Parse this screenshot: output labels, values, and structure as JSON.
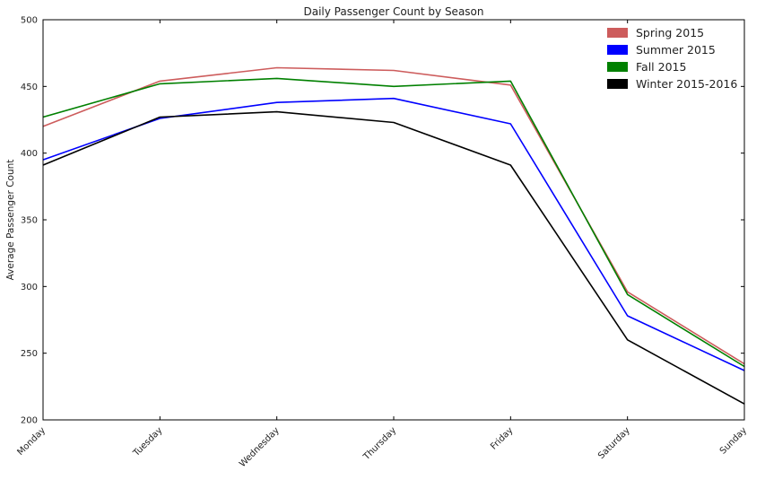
{
  "chart_data": {
    "type": "line",
    "title": "Daily Passenger Count by Season",
    "xlabel": "",
    "ylabel": "Average Passenger Count",
    "categories": [
      "Monday",
      "Tuesday",
      "Wednesday",
      "Thursday",
      "Friday",
      "Saturday",
      "Sunday"
    ],
    "ylim": [
      200,
      500
    ],
    "yticks": [
      200,
      250,
      300,
      350,
      400,
      450,
      500
    ],
    "grid": false,
    "legend_position": "top-right",
    "series": [
      {
        "name": "Spring 2015",
        "color": "#cd5c5c",
        "values": [
          420,
          454,
          464,
          462,
          451,
          296,
          242
        ]
      },
      {
        "name": "Summer 2015",
        "color": "#0000ff",
        "values": [
          395,
          426,
          438,
          441,
          422,
          278,
          237
        ]
      },
      {
        "name": "Fall 2015",
        "color": "#008000",
        "values": [
          427,
          452,
          456,
          450,
          454,
          294,
          240
        ]
      },
      {
        "name": "Winter 2015-2016",
        "color": "#000000",
        "values": [
          391,
          427,
          431,
          423,
          391,
          260,
          212
        ]
      }
    ]
  }
}
